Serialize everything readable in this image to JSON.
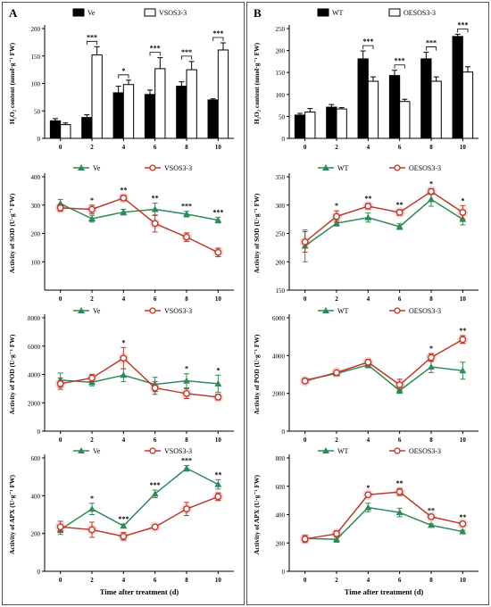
{
  "panels": [
    {
      "letter": "A",
      "time_label": "Time after treatment (d)",
      "charts": [
        {
          "type": "bar",
          "ylabel": "H₂O₂ content (nmol·g⁻¹ FW)",
          "categories": [
            "0",
            "2",
            "4",
            "6",
            "8",
            "10"
          ],
          "ylim": [
            0,
            200
          ],
          "yticks": [
            0,
            50,
            100,
            150,
            200
          ],
          "legend_position": "top",
          "series": [
            {
              "name": "Ve",
              "fill": "#000000",
              "values": [
                32,
                38,
                83,
                80,
                95,
                70
              ],
              "errors": [
                4,
                5,
                12,
                8,
                8,
                2
              ]
            },
            {
              "name": "VSOS3-3",
              "fill": "#ffffff",
              "values": [
                25,
                152,
                98,
                127,
                125,
                161
              ],
              "errors": [
                3,
                15,
                8,
                20,
                15,
                13
              ]
            }
          ],
          "significance": [
            "",
            "***",
            "*",
            "***",
            "***",
            "***"
          ]
        },
        {
          "type": "line",
          "ylabel": "Activity of SOD (U·g⁻¹ FW)",
          "x": [
            "0",
            "2",
            "4",
            "6",
            "8",
            "10"
          ],
          "ylim": [
            0,
            400
          ],
          "yticks": [
            100,
            200,
            300,
            400
          ],
          "legend_position": "top",
          "series": [
            {
              "name": "Ve",
              "color": "#2e8b57",
              "marker": "triangle",
              "values": [
                305,
                252,
                275,
                285,
                268,
                247
              ],
              "errors": [
                15,
                12,
                10,
                22,
                10,
                10
              ]
            },
            {
              "name": "VSOS3-3",
              "color": "#c0392b",
              "marker": "circle",
              "values": [
                290,
                285,
                325,
                235,
                187,
                133
              ],
              "errors": [
                12,
                15,
                10,
                30,
                15,
                15
              ]
            }
          ],
          "significance": [
            "",
            "*",
            "**",
            "**",
            "***",
            "***"
          ]
        },
        {
          "type": "line",
          "ylabel": "Activity of POD (U·g⁻¹ FW)",
          "x": [
            "0",
            "2",
            "4",
            "6",
            "8",
            "10"
          ],
          "ylim": [
            0,
            8000
          ],
          "yticks": [
            0,
            2000,
            4000,
            6000,
            8000
          ],
          "legend_position": "top",
          "series": [
            {
              "name": "Ve",
              "color": "#2e8b57",
              "marker": "triangle",
              "values": [
                3600,
                3450,
                3950,
                3300,
                3550,
                3350
              ],
              "errors": [
                500,
                250,
                450,
                500,
                500,
                600
              ]
            },
            {
              "name": "VSOS3-3",
              "color": "#c0392b",
              "marker": "circle",
              "values": [
                3350,
                3750,
                5150,
                3050,
                2650,
                2400
              ],
              "errors": [
                400,
                250,
                750,
                450,
                350,
                200
              ]
            }
          ],
          "significance": [
            "",
            "",
            "*",
            "",
            "*",
            "*"
          ]
        },
        {
          "type": "line",
          "ylabel": "Activity of APX (U·g⁻¹ FW)",
          "x": [
            "0",
            "2",
            "4",
            "6",
            "8",
            "10"
          ],
          "ylim": [
            0,
            600
          ],
          "yticks": [
            0,
            200,
            400,
            600
          ],
          "legend_position": "top",
          "series": [
            {
              "name": "Ve",
              "color": "#2e8b57",
              "marker": "triangle",
              "values": [
                220,
                330,
                240,
                410,
                545,
                460
              ],
              "errors": [
                25,
                30,
                10,
                20,
                15,
                25
              ]
            },
            {
              "name": "VSOS3-3",
              "color": "#c0392b",
              "marker": "circle",
              "values": [
                235,
                220,
                185,
                235,
                330,
                395
              ],
              "errors": [
                30,
                40,
                20,
                10,
                35,
                20
              ]
            }
          ],
          "significance": [
            "",
            "*",
            "***",
            "***",
            "***",
            "**"
          ]
        }
      ]
    },
    {
      "letter": "B",
      "time_label": "Time after treatment (d)",
      "charts": [
        {
          "type": "bar",
          "ylabel": "H₂O₂ content (nmol·g⁻¹ FW)",
          "categories": [
            "0",
            "2",
            "4",
            "6",
            "8",
            "10"
          ],
          "ylim": [
            0,
            250
          ],
          "yticks": [
            0,
            50,
            100,
            150,
            200,
            250
          ],
          "legend_position": "top",
          "series": [
            {
              "name": "WT",
              "fill": "#000000",
              "values": [
                53,
                71,
                181,
                143,
                181,
                232
              ],
              "errors": [
                4,
                6,
                18,
                12,
                15,
                5
              ]
            },
            {
              "name": "OESOS3-3",
              "fill": "#ffffff",
              "values": [
                60,
                67,
                130,
                84,
                130,
                151
              ],
              "errors": [
                8,
                3,
                10,
                5,
                10,
                12
              ]
            }
          ],
          "significance": [
            "",
            "",
            "***",
            "***",
            "***",
            "***"
          ]
        },
        {
          "type": "line",
          "ylabel": "Activity of SOD (U·g⁻¹ FW)",
          "x": [
            "0",
            "2",
            "4",
            "6",
            "8",
            "10"
          ],
          "ylim": [
            150,
            350
          ],
          "yticks": [
            150,
            200,
            250,
            300,
            350
          ],
          "legend_position": "top",
          "series": [
            {
              "name": "WT",
              "color": "#2e8b57",
              "marker": "triangle",
              "values": [
                228,
                268,
                278,
                262,
                310,
                275
              ],
              "errors": [
                28,
                5,
                8,
                5,
                12,
                10
              ]
            },
            {
              "name": "OESOS3-3",
              "color": "#c0392b",
              "marker": "circle",
              "values": [
                235,
                280,
                298,
                287,
                324,
                287
              ],
              "errors": [
                18,
                10,
                5,
                5,
                5,
                12
              ]
            }
          ],
          "significance": [
            "",
            "*",
            "**",
            "**",
            "*",
            "*"
          ]
        },
        {
          "type": "line",
          "ylabel": "Activity of POD (U·g⁻¹ FW)",
          "x": [
            "0",
            "2",
            "4",
            "6",
            "8",
            "10"
          ],
          "ylim": [
            0,
            6000
          ],
          "yticks": [
            0,
            2000,
            4000,
            6000
          ],
          "legend_position": "top",
          "series": [
            {
              "name": "WT",
              "color": "#2e8b57",
              "marker": "triangle",
              "values": [
                2700,
                3050,
                3500,
                2150,
                3400,
                3200
              ],
              "errors": [
                100,
                100,
                150,
                150,
                300,
                450
              ]
            },
            {
              "name": "OESOS3-3",
              "color": "#c0392b",
              "marker": "circle",
              "values": [
                2650,
                3100,
                3650,
                2450,
                3900,
                4850
              ],
              "errors": [
                100,
                100,
                150,
                300,
                200,
                200
              ]
            }
          ],
          "significance": [
            "",
            "",
            "",
            "",
            "*",
            "**"
          ]
        },
        {
          "type": "line",
          "ylabel": "Activity of APX (U·g⁻¹ FW)",
          "x": [
            "0",
            "2",
            "4",
            "6",
            "8",
            "10"
          ],
          "ylim": [
            0,
            800
          ],
          "yticks": [
            0,
            200,
            400,
            600,
            800
          ],
          "legend_position": "top",
          "series": [
            {
              "name": "WT",
              "color": "#2e8b57",
              "marker": "triangle",
              "values": [
                232,
                225,
                450,
                415,
                325,
                280
              ],
              "errors": [
                20,
                20,
                30,
                30,
                10,
                10
              ]
            },
            {
              "name": "OESOS3-3",
              "color": "#c0392b",
              "marker": "circle",
              "values": [
                228,
                265,
                540,
                560,
                385,
                335
              ],
              "errors": [
                25,
                20,
                15,
                25,
                10,
                10
              ]
            }
          ],
          "significance": [
            "",
            "",
            "*",
            "**",
            "**",
            "**"
          ]
        }
      ]
    }
  ]
}
